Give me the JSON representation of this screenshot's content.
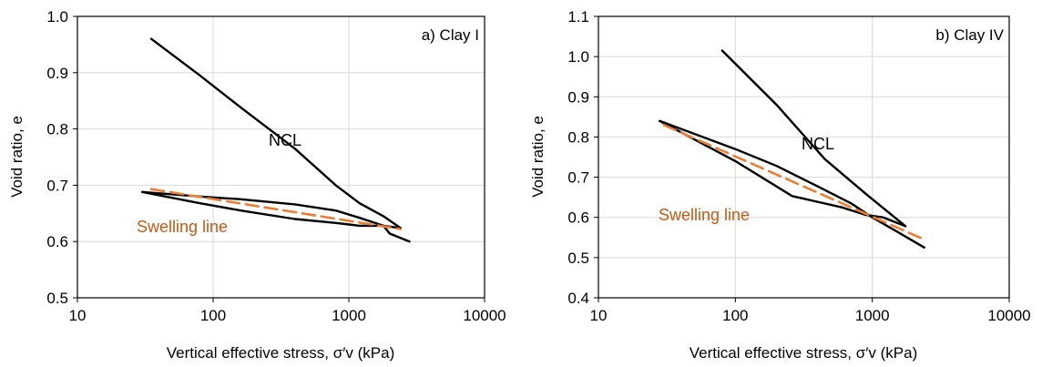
{
  "chart_data": [
    {
      "type": "line",
      "panel_label": "a) Clay I",
      "xlabel": "Vertical effective stress, σ′v (kPa)",
      "ylabel": "Void ratio, e",
      "x_scale": "log",
      "xlim": [
        10,
        10000
      ],
      "ylim": [
        0.5,
        1.0
      ],
      "x_ticks": [
        "10",
        "100",
        "1000",
        "10000"
      ],
      "y_ticks": [
        "0.5",
        "0.6",
        "0.7",
        "0.8",
        "0.9",
        "1.0"
      ],
      "grid": true,
      "annotations": [
        {
          "text": "NCL",
          "color": "#000000"
        },
        {
          "text": "Swelling line",
          "color": "#C55A11"
        }
      ],
      "series": [
        {
          "style": "solid",
          "color": "#000000",
          "points": [
            [
              35,
              0.96
            ],
            [
              80,
              0.895
            ],
            [
              160,
              0.838
            ],
            [
              400,
              0.765
            ],
            [
              800,
              0.7
            ],
            [
              1200,
              0.668
            ],
            [
              1800,
              0.645
            ],
            [
              2400,
              0.624
            ],
            [
              1800,
              0.628
            ],
            [
              1200,
              0.628
            ],
            [
              800,
              0.633
            ],
            [
              400,
              0.64
            ],
            [
              160,
              0.655
            ],
            [
              80,
              0.668
            ],
            [
              30,
              0.688
            ],
            [
              80,
              0.68
            ],
            [
              160,
              0.675
            ],
            [
              400,
              0.666
            ],
            [
              800,
              0.655
            ],
            [
              1200,
              0.642
            ],
            [
              1800,
              0.628
            ],
            [
              2000,
              0.614
            ],
            [
              2800,
              0.6
            ]
          ]
        },
        {
          "style": "dashed",
          "color": "#ED7D31",
          "points": [
            [
              35,
              0.693
            ],
            [
              2400,
              0.622
            ]
          ]
        }
      ]
    },
    {
      "type": "line",
      "panel_label": "b) Clay IV",
      "xlabel": "Vertical effective stress, σ′v (kPa)",
      "ylabel": "Void ratio, e",
      "x_scale": "log",
      "xlim": [
        10,
        10000
      ],
      "ylim": [
        0.4,
        1.1
      ],
      "x_ticks": [
        "10",
        "100",
        "1000",
        "10000"
      ],
      "y_ticks": [
        "0.4",
        "0.5",
        "0.6",
        "0.7",
        "0.8",
        "0.9",
        "1.0",
        "1.1"
      ],
      "grid": true,
      "annotations": [
        {
          "text": "NCL",
          "color": "#000000"
        },
        {
          "text": "Swelling line",
          "color": "#C55A11"
        }
      ],
      "series": [
        {
          "style": "solid",
          "color": "#000000",
          "points": [
            [
              80,
              1.015
            ],
            [
              200,
              0.88
            ],
            [
              450,
              0.745
            ],
            [
              900,
              0.658
            ],
            [
              1750,
              0.578
            ],
            [
              1200,
              0.6
            ],
            [
              900,
              0.606
            ],
            [
              600,
              0.625
            ],
            [
              260,
              0.653
            ],
            [
              100,
              0.74
            ],
            [
              28,
              0.84
            ],
            [
              100,
              0.77
            ],
            [
              200,
              0.728
            ],
            [
              400,
              0.677
            ],
            [
              700,
              0.635
            ],
            [
              1000,
              0.6
            ],
            [
              1600,
              0.56
            ],
            [
              2400,
              0.525
            ]
          ]
        },
        {
          "style": "dashed",
          "color": "#ED7D31",
          "points": [
            [
              30,
              0.83
            ],
            [
              2400,
              0.545
            ]
          ]
        }
      ]
    }
  ]
}
